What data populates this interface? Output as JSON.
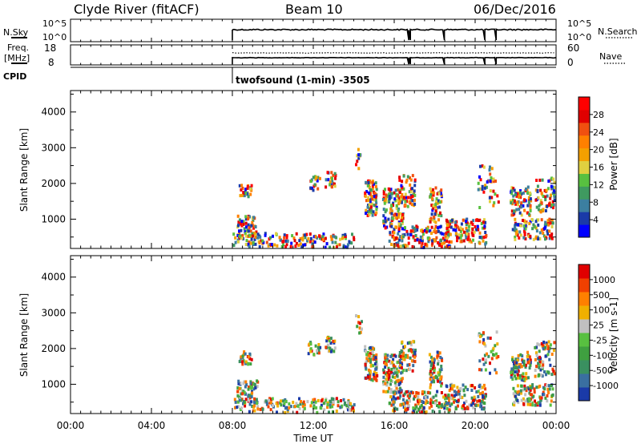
{
  "header": {
    "station": "Clyde River (fitACF)",
    "beam": "Beam 10",
    "date": "06/Dec/2016"
  },
  "summary_panels": {
    "nsky": {
      "label": "N.Sky",
      "ticks": [
        "10^5",
        "10^0"
      ],
      "right_label": "N.Search",
      "right_ticks": [
        "10^5",
        "10^0"
      ]
    },
    "freq": {
      "label": "Freq.",
      "unit": "[MHz]",
      "ticks": [
        "18",
        "8"
      ],
      "right_label": "Nave",
      "right_ticks": [
        "60",
        "0"
      ]
    },
    "cpid": {
      "label": "CPID",
      "text": "twofsound (1-min) -3505"
    }
  },
  "chart_data": [
    {
      "type": "heatmap",
      "name": "power",
      "ylabel": "Slant Range [km]",
      "y_ticks": [
        "4000",
        "3000",
        "2000",
        "1000"
      ],
      "ylim": [
        180,
        4600
      ],
      "xlim": [
        0,
        24
      ],
      "colorbar": {
        "label": "Power [dB]",
        "ticks": [
          "28",
          "24",
          "20",
          "16",
          "12",
          "8",
          "4"
        ],
        "colors": [
          "#0000ff",
          "#1a3aa8",
          "#3c7fa0",
          "#3f9a60",
          "#58c040",
          "#e0d040",
          "#f4a000",
          "#ff8000",
          "#f05010",
          "#e00000",
          "#ff0000"
        ]
      }
    },
    {
      "type": "heatmap",
      "name": "velocity",
      "ylabel": "Slant Range [km]",
      "y_ticks": [
        "4000",
        "3000",
        "2000",
        "1000"
      ],
      "ylim": [
        180,
        4600
      ],
      "xlim": [
        0,
        24
      ],
      "x_ticks": [
        "00:00",
        "04:00",
        "08:00",
        "12:00",
        "16:00",
        "20:00",
        "00:00"
      ],
      "xlabel": "Time UT",
      "colorbar": {
        "label": "Velocity [m s-1]",
        "ticks": [
          "1000",
          "500",
          "100",
          "25",
          "-25",
          "-100",
          "-500",
          "-1000"
        ],
        "colors": [
          "#1a3aa8",
          "#3a6fa0",
          "#3a9060",
          "#3fa040",
          "#58c040",
          "#c0c0c0",
          "#f0b000",
          "#ff8000",
          "#f04000",
          "#e00000"
        ]
      }
    }
  ],
  "data_coverage_start_ut": 8.0
}
